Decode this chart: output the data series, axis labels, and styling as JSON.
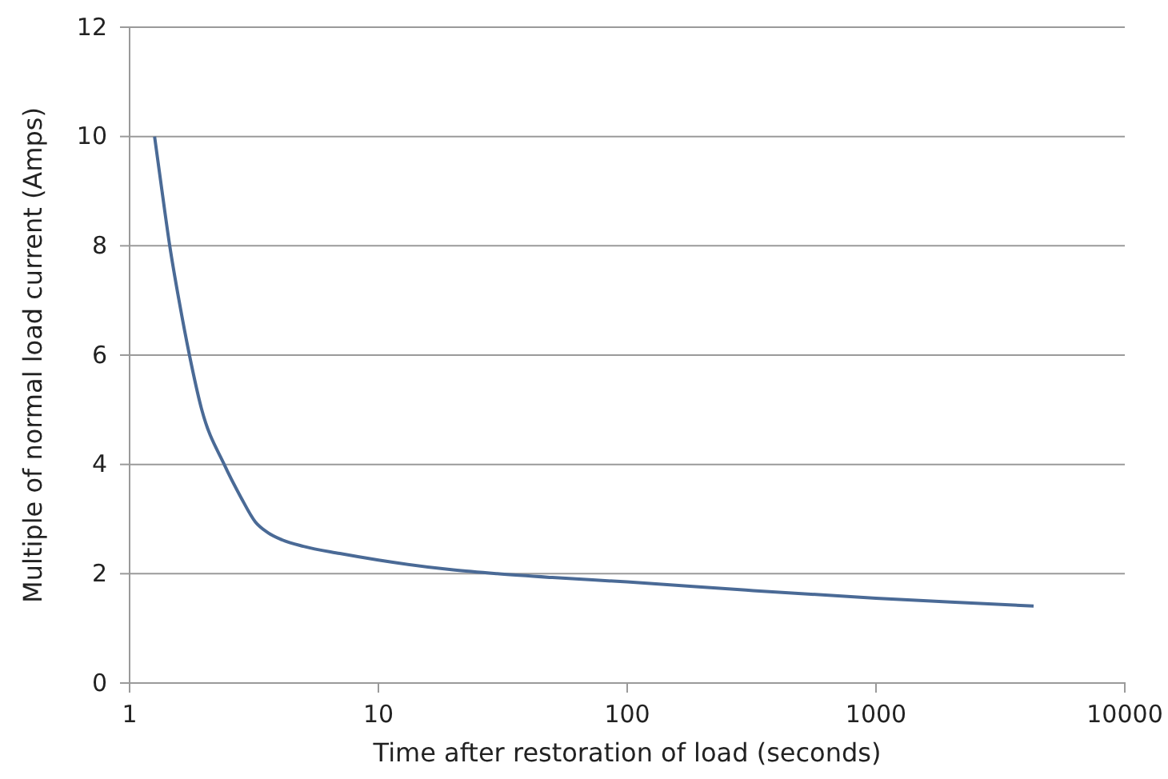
{
  "chart_data": {
    "type": "line",
    "xlabel": "Time after restoration of load (seconds)",
    "ylabel": "Multiple of normal load current (Amps)",
    "log": "x",
    "xlim": [
      1,
      10000
    ],
    "xticks": [
      1,
      10,
      100,
      1000,
      10000
    ],
    "ylim": [
      0,
      12
    ],
    "yticks": [
      0,
      2,
      4,
      6,
      8,
      10,
      12
    ],
    "grid": "y",
    "marker": "none",
    "line_style": "solid",
    "x": [
      1.26,
      1.35,
      1.45,
      1.58,
      1.74,
      1.95,
      2.4,
      2.8,
      3.2,
      3.6,
      4.1,
      5,
      7,
      10,
      20,
      30,
      50,
      100,
      300,
      1000,
      2000,
      4300
    ],
    "series": [
      {
        "color": "#4a6a96",
        "values": [
          10,
          9,
          8,
          7,
          6,
          5,
          4,
          3.4,
          2.95,
          2.75,
          2.62,
          2.5,
          2.37,
          2.25,
          2.07,
          2.0,
          1.93,
          1.85,
          1.7,
          1.55,
          1.48,
          1.41
        ]
      }
    ]
  }
}
